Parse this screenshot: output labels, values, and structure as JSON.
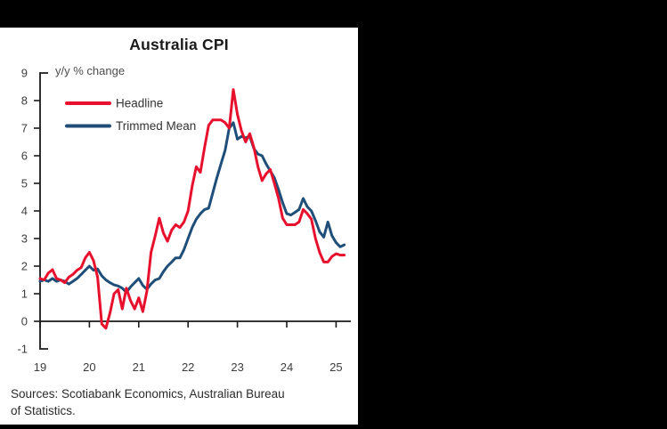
{
  "window": {
    "background": "#000000",
    "panel_background": "#ffffff",
    "axis_color": "#1a1a1a"
  },
  "chart_data": {
    "type": "line",
    "title": "Australia CPI",
    "axis_note": "y/y % change",
    "frequency": "monthly",
    "x_start": "2019-01",
    "x_end": "2025-03",
    "x_tick_labels": [
      "19",
      "20",
      "21",
      "22",
      "23",
      "24",
      "25"
    ],
    "y_tick_labels": [
      "-1",
      "0",
      "1",
      "2",
      "3",
      "4",
      "5",
      "6",
      "7",
      "8",
      "9"
    ],
    "ylim": [
      -1,
      9
    ],
    "grid": false,
    "legend_position": "top-left",
    "series": [
      {
        "name": "Headline",
        "color": "#e8112d",
        "values": [
          1.55,
          1.5,
          1.75,
          1.87,
          1.55,
          1.5,
          1.4,
          1.6,
          1.7,
          1.85,
          1.95,
          2.3,
          2.5,
          2.2,
          1.6,
          -0.1,
          -0.25,
          0.3,
          1.0,
          1.15,
          0.45,
          1.2,
          0.75,
          0.45,
          0.85,
          0.35,
          1.1,
          2.5,
          3.1,
          3.74,
          3.2,
          2.9,
          3.3,
          3.5,
          3.4,
          3.6,
          4.0,
          4.9,
          5.6,
          5.4,
          6.3,
          7.1,
          7.3,
          7.3,
          7.3,
          7.2,
          7.0,
          8.4,
          7.5,
          6.9,
          6.5,
          6.8,
          6.3,
          5.6,
          5.1,
          5.35,
          5.5,
          5.0,
          4.45,
          3.74,
          3.5,
          3.5,
          3.5,
          3.6,
          4.05,
          3.9,
          3.7,
          3.0,
          2.5,
          2.15,
          2.15,
          2.35,
          2.45,
          2.4,
          2.4
        ]
      },
      {
        "name": "Trimmed Mean",
        "color": "#1f4e79",
        "values": [
          1.45,
          1.5,
          1.45,
          1.55,
          1.45,
          1.5,
          1.45,
          1.35,
          1.45,
          1.55,
          1.7,
          1.85,
          2.0,
          1.85,
          1.9,
          1.65,
          1.5,
          1.4,
          1.32,
          1.28,
          1.2,
          1.05,
          1.25,
          1.4,
          1.55,
          1.3,
          1.16,
          1.35,
          1.5,
          1.55,
          1.8,
          2.0,
          2.15,
          2.3,
          2.3,
          2.6,
          3.0,
          3.4,
          3.7,
          3.9,
          4.05,
          4.1,
          4.65,
          5.2,
          5.7,
          6.2,
          7.0,
          7.2,
          6.6,
          6.7,
          6.65,
          6.7,
          6.26,
          6.06,
          6.0,
          5.7,
          5.45,
          5.2,
          4.77,
          4.3,
          3.9,
          3.85,
          3.95,
          4.05,
          4.45,
          4.15,
          4.0,
          3.65,
          3.25,
          3.05,
          3.6,
          3.1,
          2.85,
          2.7,
          2.77
        ]
      }
    ]
  },
  "source": {
    "line1": "Sources: Scotiabank Economics, Australian Bureau",
    "line2": "of Statistics."
  }
}
